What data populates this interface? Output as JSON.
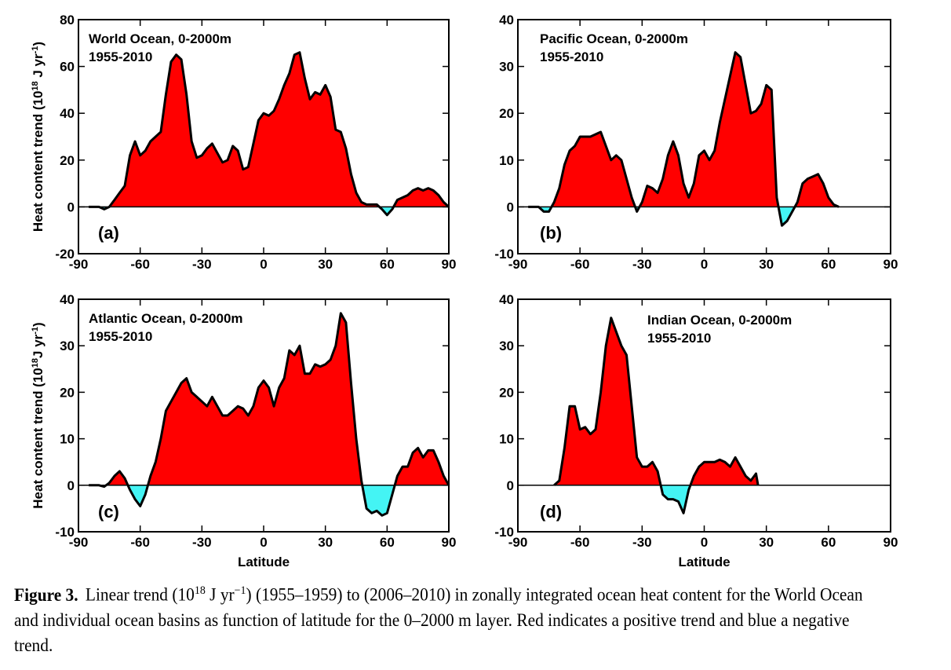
{
  "chart_data": [
    {
      "type": "area",
      "title": "World Ocean, 0-2000m",
      "subtitle": "1955-2010",
      "panel_label": "(a)",
      "ylabel": [
        "Heat content trend (10",
        "18",
        " J yr",
        "-1",
        ")"
      ],
      "color": "#ff0000",
      "negative_color": "#44f4f4",
      "line_color": "#000000",
      "xlim": [
        -90,
        90
      ],
      "xticks": [
        -90,
        -60,
        -30,
        0,
        30,
        60,
        90
      ],
      "ylim": [
        -20,
        80
      ],
      "yticks": [
        -20,
        0,
        20,
        40,
        60,
        80
      ],
      "x": [
        -85,
        -82.5,
        -80,
        -77.5,
        -75,
        -72.5,
        -70,
        -67.5,
        -65,
        -62.5,
        -60,
        -57.5,
        -55,
        -52.5,
        -50,
        -47.5,
        -45,
        -42.5,
        -40,
        -37.5,
        -35,
        -32.5,
        -30,
        -27.5,
        -25,
        -22.5,
        -20,
        -17.5,
        -15,
        -12.5,
        -10,
        -7.5,
        -5,
        -2.5,
        0,
        2.5,
        5,
        7.5,
        10,
        12.5,
        15,
        17.5,
        20,
        22.5,
        25,
        27.5,
        30,
        32.5,
        35,
        37.5,
        40,
        42.5,
        45,
        47.5,
        50,
        52.5,
        55,
        57.5,
        60,
        62.5,
        65,
        67.5,
        70,
        72.5,
        75,
        77.5,
        80,
        82.5,
        85,
        87.5,
        90
      ],
      "values": [
        0,
        0,
        0,
        -1,
        0,
        3,
        6,
        9,
        22,
        28,
        22,
        24,
        28,
        30,
        32,
        48,
        62,
        65,
        63,
        48,
        28,
        21,
        22,
        25,
        27,
        23,
        19,
        20,
        26,
        24,
        16,
        17,
        27,
        37,
        40,
        39,
        41,
        46,
        52,
        57,
        65,
        66,
        55,
        46,
        49,
        48,
        52,
        47,
        33,
        32,
        25,
        14,
        6,
        2,
        1,
        1,
        1,
        -1,
        -3.5,
        -1,
        3,
        4,
        5,
        7,
        8,
        7,
        8,
        7,
        5,
        2,
        0
      ]
    },
    {
      "type": "area",
      "title": "Pacific Ocean, 0-2000m",
      "subtitle": "1955-2010",
      "panel_label": "(b)",
      "color": "#ff0000",
      "negative_color": "#44f4f4",
      "line_color": "#000000",
      "xlim": [
        -90,
        90
      ],
      "xticks": [
        -90,
        -60,
        -30,
        0,
        30,
        60,
        90
      ],
      "ylim": [
        -10,
        40
      ],
      "yticks": [
        -10,
        0,
        10,
        20,
        30,
        40
      ],
      "x": [
        -85,
        -82.5,
        -80,
        -77.5,
        -75,
        -72.5,
        -70,
        -67.5,
        -65,
        -62.5,
        -60,
        -57.5,
        -55,
        -52.5,
        -50,
        -47.5,
        -45,
        -42.5,
        -40,
        -37.5,
        -35,
        -32.5,
        -30,
        -27.5,
        -25,
        -22.5,
        -20,
        -17.5,
        -15,
        -12.5,
        -10,
        -7.5,
        -5,
        -2.5,
        0,
        2.5,
        5,
        7.5,
        10,
        12.5,
        15,
        17.5,
        20,
        22.5,
        25,
        27.5,
        30,
        32.5,
        35,
        37.5,
        40,
        42.5,
        45,
        47.5,
        50,
        52.5,
        55,
        57.5,
        60,
        62.5,
        65
      ],
      "values": [
        0,
        0,
        0,
        -1,
        -1,
        1,
        4,
        9,
        12,
        13,
        15,
        15,
        15,
        15.5,
        16,
        13,
        10,
        11,
        10,
        6,
        2,
        -1,
        1,
        4.5,
        4,
        3,
        6,
        11,
        14,
        11,
        5,
        2,
        5,
        11,
        12,
        10,
        12,
        18,
        23,
        28,
        33,
        32,
        26,
        20,
        20.5,
        22,
        26,
        25,
        2,
        -4,
        -3,
        -1,
        1,
        5,
        6,
        6.5,
        7,
        5,
        2,
        0.5,
        0
      ]
    },
    {
      "type": "area",
      "title": "Atlantic Ocean, 0-2000m",
      "subtitle": "1955-2010",
      "panel_label": "(c)",
      "ylabel": [
        "Heat content trend (10",
        "18",
        "J yr",
        "-1",
        ")"
      ],
      "xlabel": "Latitude",
      "color": "#ff0000",
      "negative_color": "#44f4f4",
      "line_color": "#000000",
      "xlim": [
        -90,
        90
      ],
      "xticks": [
        -90,
        -60,
        -30,
        0,
        30,
        60,
        90
      ],
      "ylim": [
        -10,
        40
      ],
      "yticks": [
        -10,
        0,
        10,
        20,
        30,
        40
      ],
      "x": [
        -85,
        -82.5,
        -80,
        -77.5,
        -75,
        -72.5,
        -70,
        -67.5,
        -65,
        -62.5,
        -60,
        -57.5,
        -55,
        -52.5,
        -50,
        -47.5,
        -45,
        -42.5,
        -40,
        -37.5,
        -35,
        -32.5,
        -30,
        -27.5,
        -25,
        -22.5,
        -20,
        -17.5,
        -15,
        -12.5,
        -10,
        -7.5,
        -5,
        -2.5,
        0,
        2.5,
        5,
        7.5,
        10,
        12.5,
        15,
        17.5,
        20,
        22.5,
        25,
        27.5,
        30,
        32.5,
        35,
        37.5,
        40,
        42.5,
        45,
        47.5,
        50,
        52.5,
        55,
        57.5,
        60,
        62.5,
        65,
        67.5,
        70,
        72.5,
        75,
        77.5,
        80,
        82.5,
        85,
        87.5,
        90
      ],
      "values": [
        0,
        0,
        0,
        -0.3,
        0.5,
        2,
        3,
        1.5,
        -1,
        -3,
        -4.5,
        -2,
        2,
        5,
        10,
        16,
        18,
        20,
        22,
        23,
        20,
        19,
        18,
        17,
        19,
        17,
        15,
        15,
        16,
        17,
        16.5,
        15,
        17,
        21,
        22.5,
        21,
        17,
        21,
        23,
        29,
        28,
        30,
        24,
        24,
        26,
        25.5,
        26,
        27,
        30,
        37,
        35,
        22,
        10,
        1,
        -5,
        -6,
        -5.5,
        -6.5,
        -6,
        -2,
        2,
        4,
        4,
        7,
        8,
        6,
        7.5,
        7.5,
        5,
        2,
        0
      ]
    },
    {
      "type": "area",
      "title": "Indian Ocean, 0-2000m",
      "subtitle": "1955-2010",
      "panel_label": "(d)",
      "xlabel": "Latitude",
      "color": "#ff0000",
      "negative_color": "#44f4f4",
      "line_color": "#000000",
      "xlim": [
        -90,
        90
      ],
      "xticks": [
        -90,
        -60,
        -30,
        0,
        30,
        60,
        90
      ],
      "ylim": [
        -10,
        40
      ],
      "yticks": [
        -10,
        0,
        10,
        20,
        30,
        40
      ],
      "x": [
        -72.5,
        -70,
        -67.5,
        -65,
        -62.5,
        -60,
        -57.5,
        -55,
        -52.5,
        -50,
        -47.5,
        -45,
        -42.5,
        -40,
        -37.5,
        -35,
        -32.5,
        -30,
        -27.5,
        -25,
        -22.5,
        -20,
        -17.5,
        -15,
        -12.5,
        -10,
        -7.5,
        -5,
        -2.5,
        0,
        2.5,
        5,
        7.5,
        10,
        12.5,
        15,
        17.5,
        20,
        22.5,
        25,
        26
      ],
      "values": [
        0,
        1,
        8,
        17,
        17,
        12,
        12.5,
        11,
        12,
        20,
        30,
        36,
        33,
        30,
        28,
        17,
        6,
        4,
        4,
        5,
        3,
        -2,
        -3,
        -3,
        -3.5,
        -6,
        -1,
        2,
        4,
        5,
        5,
        5,
        5.5,
        5,
        4,
        6,
        4,
        2,
        1,
        2.5,
        0
      ]
    }
  ],
  "caption": {
    "label": "Figure 3.",
    "parts": [
      "Linear trend (10",
      "18",
      " J yr",
      "−1",
      ") (1955–1959) to (2006–2010) in zonally integrated ocean heat content for the World Ocean and individual ocean basins as function of latitude for the 0–2000 m layer. Red indicates a positive trend and blue a negative trend."
    ]
  }
}
